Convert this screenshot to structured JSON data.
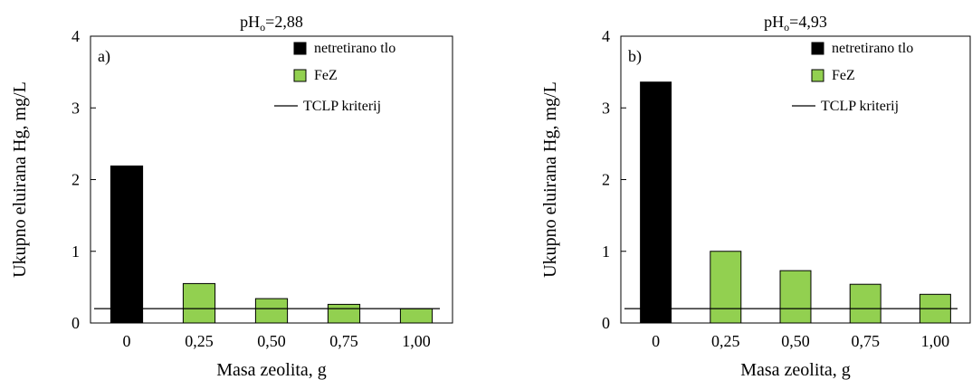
{
  "chart_data": [
    {
      "type": "bar",
      "title": {
        "prefix": "pH",
        "sub": "o",
        "suffix": "=2,88"
      },
      "panel_label": "a)",
      "xlabel": "Masa zeolita,  g",
      "ylabel": "Ukupno eluirana  Hg,  mg/L",
      "categories": [
        "0",
        "0,25",
        "0,50",
        "0,75",
        "1,00"
      ],
      "ylim": [
        0,
        4
      ],
      "yticks": [
        "0",
        "1",
        "2",
        "3",
        "4"
      ],
      "series": [
        {
          "name": "netretirano tlo",
          "color": "#000000",
          "values": [
            2.19,
            null,
            null,
            null,
            null
          ]
        },
        {
          "name": "FeZ",
          "color": "#92d050",
          "values": [
            null,
            0.55,
            0.34,
            0.26,
            0.2
          ]
        }
      ],
      "reference_line": {
        "name": "TCLP  kriterij",
        "value": 0.2
      },
      "legend_position": "top-right",
      "grid": false
    },
    {
      "type": "bar",
      "title": {
        "prefix": "pH",
        "sub": "o",
        "suffix": "=4,93"
      },
      "panel_label": "b)",
      "xlabel": "Masa zeolita,  g",
      "ylabel": "Ukupno eluirana  Hg,  mg/L",
      "categories": [
        "0",
        "0,25",
        "0,50",
        "0,75",
        "1,00"
      ],
      "ylim": [
        0,
        4
      ],
      "yticks": [
        "0",
        "1",
        "2",
        "3",
        "4"
      ],
      "series": [
        {
          "name": "netretirano tlo",
          "color": "#000000",
          "values": [
            3.36,
            null,
            null,
            null,
            null
          ]
        },
        {
          "name": "FeZ",
          "color": "#92d050",
          "values": [
            null,
            1.0,
            0.73,
            0.54,
            0.4
          ]
        }
      ],
      "reference_line": {
        "name": "TCLP  kriterij",
        "value": 0.2
      },
      "legend_position": "top-right",
      "grid": false
    }
  ]
}
